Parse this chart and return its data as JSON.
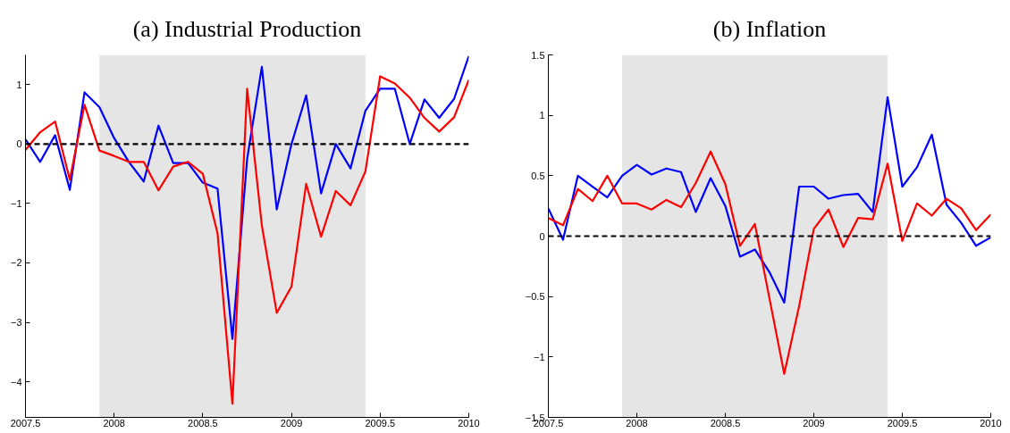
{
  "chart_data": [
    {
      "type": "line",
      "title": "(a) Industrial Production",
      "xlim": [
        2007.5,
        2010
      ],
      "xticks": [
        2007.5,
        2008,
        2008.5,
        2009,
        2009.5,
        2010
      ],
      "ylim": [
        -4.6,
        1.5
      ],
      "yticks": [
        {
          "value": -4,
          "label": "−4"
        },
        {
          "value": -3,
          "label": "−3"
        },
        {
          "value": -2,
          "label": "−2"
        },
        {
          "value": -1,
          "label": "−1"
        },
        0,
        1
      ],
      "line_style": "solid",
      "marker": "none",
      "x": [
        2007.5,
        2007.583,
        2007.667,
        2007.75,
        2007.833,
        2007.917,
        2008,
        2008.083,
        2008.167,
        2008.25,
        2008.333,
        2008.417,
        2008.5,
        2008.583,
        2008.667,
        2008.75,
        2008.833,
        2008.917,
        2009,
        2009.083,
        2009.167,
        2009.25,
        2009.333,
        2009.417,
        2009.5,
        2009.583,
        2009.667,
        2009.75,
        2009.833,
        2009.917,
        2010
      ],
      "series": [
        {
          "color": "#0000ff",
          "values": [
            0.08,
            -0.3,
            0.15,
            -0.77,
            0.87,
            0.62,
            0.1,
            -0.3,
            -0.63,
            0.31,
            -0.32,
            -0.32,
            -0.65,
            -0.75,
            -3.28,
            -0.25,
            1.3,
            -1.1,
            0.0,
            0.82,
            -0.83,
            0.0,
            -0.41,
            0.56,
            0.93,
            0.93,
            0.0,
            0.75,
            0.44,
            0.76,
            1.48
          ]
        },
        {
          "color": "#ff0000",
          "values": [
            -0.1,
            0.2,
            0.38,
            -0.6,
            0.66,
            -0.11,
            -0.2,
            -0.3,
            -0.3,
            -0.78,
            -0.38,
            -0.3,
            -0.5,
            -1.5,
            -4.37,
            0.93,
            -1.37,
            -2.84,
            -2.4,
            -0.67,
            -1.56,
            -0.79,
            -1.03,
            -0.46,
            1.14,
            1.02,
            0.78,
            0.44,
            0.21,
            0.45,
            1.08
          ]
        }
      ],
      "ref_lines": [
        {
          "axis": "y",
          "value": 0,
          "color": "#000000",
          "line_style": "dashed"
        }
      ],
      "bands": [
        {
          "axis": "x",
          "from": 2007.917,
          "to": 2009.417,
          "color": "#e5e5e5"
        }
      ]
    },
    {
      "type": "line",
      "title": "(b) Inflation",
      "xlim": [
        2007.5,
        2010
      ],
      "xticks": [
        2007.5,
        2008,
        2008.5,
        2009,
        2009.5,
        2010
      ],
      "ylim": [
        -1.5,
        1.5
      ],
      "yticks": [
        {
          "value": -1.5,
          "label": "−1.5"
        },
        {
          "value": -1,
          "label": "−1"
        },
        {
          "value": -0.5,
          "label": "−0.5"
        },
        0,
        0.5,
        1,
        1.5
      ],
      "line_style": "solid",
      "marker": "none",
      "x": [
        2007.5,
        2007.583,
        2007.667,
        2007.75,
        2007.833,
        2007.917,
        2008,
        2008.083,
        2008.167,
        2008.25,
        2008.333,
        2008.417,
        2008.5,
        2008.583,
        2008.667,
        2008.75,
        2008.833,
        2008.917,
        2009,
        2009.083,
        2009.167,
        2009.25,
        2009.333,
        2009.417,
        2009.5,
        2009.583,
        2009.667,
        2009.75,
        2009.833,
        2009.917,
        2010
      ],
      "series": [
        {
          "color": "#0000ff",
          "values": [
            0.23,
            -0.03,
            0.5,
            0.41,
            0.32,
            0.5,
            0.59,
            0.51,
            0.56,
            0.53,
            0.2,
            0.48,
            0.25,
            -0.17,
            -0.11,
            -0.3,
            -0.55,
            0.41,
            0.41,
            0.31,
            0.34,
            0.35,
            0.2,
            1.15,
            0.41,
            0.57,
            0.84,
            0.26,
            0.11,
            -0.08,
            -0.01
          ]
        },
        {
          "color": "#ff0000",
          "values": [
            0.15,
            0.09,
            0.39,
            0.29,
            0.5,
            0.27,
            0.27,
            0.22,
            0.3,
            0.24,
            0.44,
            0.7,
            0.43,
            -0.08,
            0.1,
            -0.52,
            -1.14,
            -0.58,
            0.06,
            0.22,
            -0.09,
            0.15,
            0.14,
            0.6,
            -0.04,
            0.27,
            0.17,
            0.31,
            0.23,
            0.05,
            0.18
          ]
        }
      ],
      "ref_lines": [
        {
          "axis": "y",
          "value": 0,
          "color": "#000000",
          "line_style": "dashed"
        }
      ],
      "bands": [
        {
          "axis": "x",
          "from": 2007.917,
          "to": 2009.417,
          "color": "#e5e5e5"
        }
      ]
    }
  ]
}
